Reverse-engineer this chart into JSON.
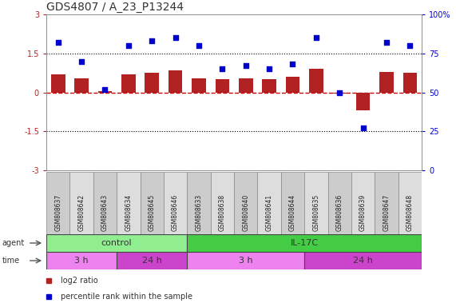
{
  "title": "GDS4807 / A_23_P13244",
  "samples": [
    "GSM808637",
    "GSM808642",
    "GSM808643",
    "GSM808634",
    "GSM808645",
    "GSM808646",
    "GSM808633",
    "GSM808638",
    "GSM808640",
    "GSM808641",
    "GSM808644",
    "GSM808635",
    "GSM808636",
    "GSM808639",
    "GSM808647",
    "GSM808648"
  ],
  "log2_ratio": [
    0.7,
    0.55,
    0.05,
    0.7,
    0.75,
    0.85,
    0.55,
    0.5,
    0.55,
    0.5,
    0.6,
    0.9,
    -0.05,
    -0.7,
    0.8,
    0.75
  ],
  "percentile": [
    82,
    70,
    52,
    80,
    83,
    85,
    80,
    65,
    67,
    65,
    68,
    85,
    50,
    27,
    82,
    80
  ],
  "ylim_left": [
    -3,
    3
  ],
  "ylim_right": [
    0,
    100
  ],
  "bar_color": "#b22222",
  "scatter_color": "#0000cc",
  "hline_color": "#cc0000",
  "dotted_color": "#000000",
  "agent_groups": [
    {
      "label": "control",
      "start": 0,
      "end": 6,
      "color": "#90ee90"
    },
    {
      "label": "IL-17C",
      "start": 6,
      "end": 16,
      "color": "#44cc44"
    }
  ],
  "time_groups": [
    {
      "label": "3 h",
      "start": 0,
      "end": 3,
      "color": "#ee82ee"
    },
    {
      "label": "24 h",
      "start": 3,
      "end": 6,
      "color": "#cc44cc"
    },
    {
      "label": "3 h",
      "start": 6,
      "end": 11,
      "color": "#ee82ee"
    },
    {
      "label": "24 h",
      "start": 11,
      "end": 16,
      "color": "#cc44cc"
    }
  ],
  "legend_items": [
    {
      "color": "#b22222",
      "label": "log2 ratio"
    },
    {
      "color": "#0000cc",
      "label": "percentile rank within the sample"
    }
  ],
  "bg_color": "#ffffff",
  "tick_fontsize": 7,
  "title_fontsize": 10,
  "sample_fontsize": 5.5,
  "row_label_fontsize": 7,
  "group_fontsize": 8
}
